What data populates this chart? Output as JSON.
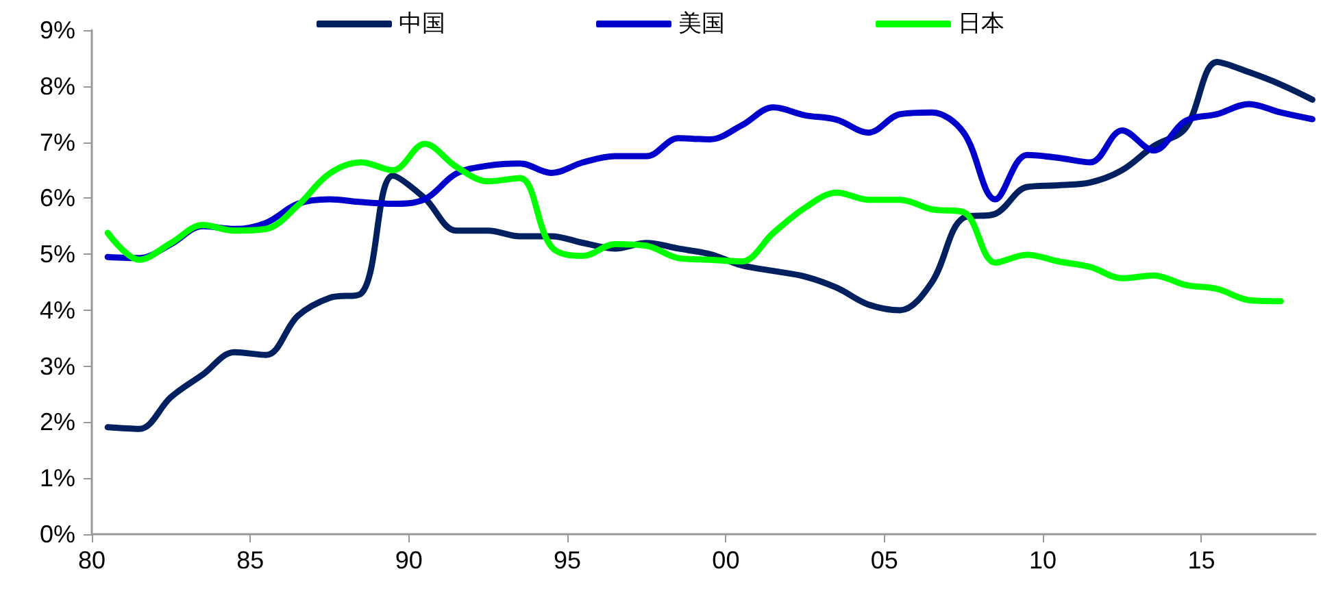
{
  "chart_data": {
    "type": "line",
    "legend": "top",
    "marker": "none",
    "line_style": "solid",
    "grid": false,
    "xlim": [
      1980,
      2018.6
    ],
    "xticks": [
      {
        "value": 1980,
        "label": "80"
      },
      {
        "value": 1985,
        "label": "85"
      },
      {
        "value": 1990,
        "label": "90"
      },
      {
        "value": 1995,
        "label": "95"
      },
      {
        "value": 2000,
        "label": "00"
      },
      {
        "value": 2005,
        "label": "05"
      },
      {
        "value": 2010,
        "label": "10"
      },
      {
        "value": 2015,
        "label": "15"
      }
    ],
    "ylim": [
      0,
      9
    ],
    "yticks": [
      {
        "value": 0,
        "label": "0%"
      },
      {
        "value": 1,
        "label": "1%"
      },
      {
        "value": 2,
        "label": "2%"
      },
      {
        "value": 3,
        "label": "3%"
      },
      {
        "value": 4,
        "label": "4%"
      },
      {
        "value": 5,
        "label": "5%"
      },
      {
        "value": 6,
        "label": "6%"
      },
      {
        "value": 7,
        "label": "7%"
      },
      {
        "value": 8,
        "label": "8%"
      },
      {
        "value": 9,
        "label": "9%"
      }
    ],
    "x": [
      1980.5,
      1981.5,
      1982.5,
      1983.5,
      1984.5,
      1985.5,
      1986.5,
      1987.5,
      1988.5,
      1989.5,
      1990.5,
      1991.5,
      1992.5,
      1993.5,
      1994.5,
      1995.5,
      1996.5,
      1997.5,
      1998.5,
      1999.5,
      2000.5,
      2001.5,
      2002.5,
      2003.5,
      2004.5,
      2005.5,
      2006.5,
      2007.5,
      2008.5,
      2009.5,
      2010.5,
      2011.5,
      2012.5,
      2013.5,
      2014.5,
      2015.5,
      2016.5,
      2017.5,
      2018.5
    ],
    "series": [
      {
        "name": "中国",
        "color": "#002060",
        "values": [
          1.91,
          1.88,
          2.45,
          2.85,
          3.25,
          3.2,
          3.9,
          4.22,
          4.3,
          6.4,
          6.0,
          5.42,
          5.42,
          5.32,
          5.32,
          5.2,
          5.1,
          5.2,
          5.1,
          5.0,
          4.8,
          4.7,
          4.6,
          4.4,
          4.1,
          4.0,
          4.5,
          5.65,
          5.72,
          6.2,
          6.23,
          6.28,
          6.5,
          6.93,
          7.25,
          8.43,
          8.25,
          8.03,
          7.76
        ]
      },
      {
        "name": "美国",
        "color": "#0000cc",
        "values": [
          4.95,
          4.93,
          5.18,
          5.5,
          5.45,
          5.56,
          5.9,
          5.98,
          5.93,
          5.9,
          5.98,
          6.44,
          6.58,
          6.62,
          6.45,
          6.64,
          6.75,
          6.75,
          7.07,
          7.05,
          7.3,
          7.62,
          7.48,
          7.4,
          7.17,
          7.5,
          7.53,
          7.17,
          5.98,
          6.77,
          6.72,
          6.64,
          7.21,
          6.85,
          7.38,
          7.5,
          7.68,
          7.53,
          7.41
        ]
      },
      {
        "name": "日本",
        "color": "#00ff00",
        "values": [
          5.38,
          4.9,
          5.2,
          5.52,
          5.42,
          5.45,
          5.87,
          6.44,
          6.64,
          6.5,
          6.97,
          6.56,
          6.3,
          6.36,
          5.13,
          4.97,
          5.18,
          5.15,
          4.93,
          4.9,
          4.87,
          5.38,
          5.83,
          6.1,
          5.97,
          5.97,
          5.8,
          5.75,
          4.85,
          4.99,
          4.87,
          4.77,
          4.57,
          4.62,
          4.45,
          4.38,
          4.18,
          4.16,
          null
        ]
      }
    ]
  }
}
